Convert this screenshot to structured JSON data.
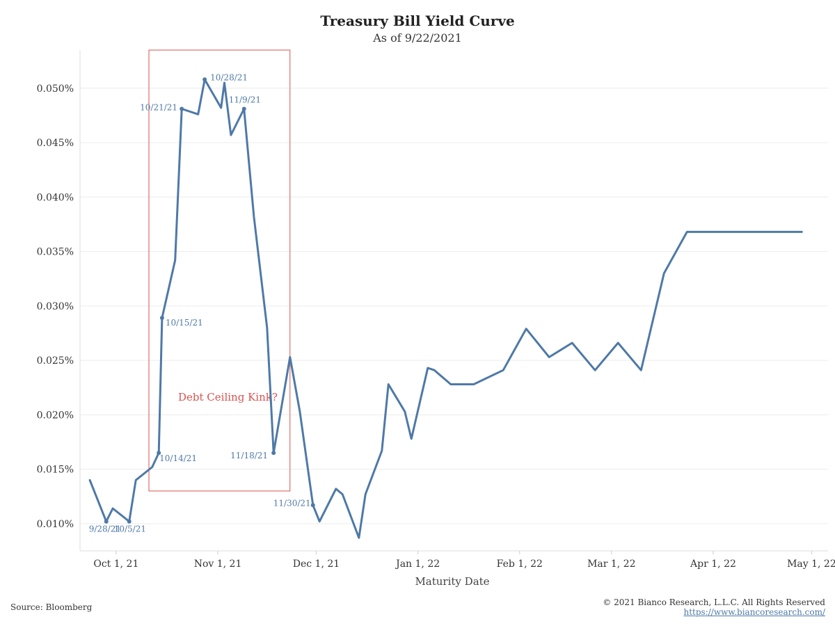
{
  "chart_data": {
    "type": "line",
    "title": "Treasury Bill Yield Curve",
    "subtitle": "As of 9/22/2021",
    "xlabel": "Maturity Date",
    "ylabel": "",
    "x_tick_labels": [
      "Oct 1, 21",
      "Nov 1, 21",
      "Dec 1, 21",
      "Jan 1, 22",
      "Feb 1, 22",
      "Mar 1, 22",
      "Apr 1, 22",
      "May 1, 22"
    ],
    "y_tick_labels": [
      "0.010%",
      "0.015%",
      "0.020%",
      "0.025%",
      "0.030%",
      "0.035%",
      "0.040%",
      "0.045%",
      "0.050%"
    ],
    "y_ticks": [
      0.01,
      0.015,
      0.02,
      0.025,
      0.03,
      0.035,
      0.04,
      0.045,
      0.05
    ],
    "ylim": [
      0.0075,
      0.0535
    ],
    "xlim": [
      "2021-09-20",
      "2022-05-06"
    ],
    "grid": true,
    "series": [
      {
        "color": "#4e79a7",
        "x": [
          "2021-09-23",
          "2021-09-28",
          "2021-09-30",
          "2021-10-05",
          "2021-10-07",
          "2021-10-12",
          "2021-10-14",
          "2021-10-15",
          "2021-10-19",
          "2021-10-21",
          "2021-10-26",
          "2021-10-28",
          "2021-11-02",
          "2021-11-03",
          "2021-11-05",
          "2021-11-09",
          "2021-11-12",
          "2021-11-16",
          "2021-11-18",
          "2021-11-23",
          "2021-11-26",
          "2021-11-30",
          "2021-12-02",
          "2021-12-07",
          "2021-12-09",
          "2021-12-14",
          "2021-12-16",
          "2021-12-21",
          "2021-12-23",
          "2021-12-28",
          "2021-12-30",
          "2022-01-04",
          "2022-01-06",
          "2022-01-11",
          "2022-01-18",
          "2022-01-27",
          "2022-02-03",
          "2022-02-10",
          "2022-02-17",
          "2022-02-24",
          "2022-03-03",
          "2022-03-10",
          "2022-03-17",
          "2022-03-24",
          "2022-03-31",
          "2022-04-28"
        ],
        "values": [
          0.014,
          0.0102,
          0.0114,
          0.0102,
          0.014,
          0.0152,
          0.0165,
          0.0289,
          0.0342,
          0.0481,
          0.0476,
          0.0508,
          0.0482,
          0.0505,
          0.0457,
          0.0481,
          0.0382,
          0.028,
          0.0165,
          0.0253,
          0.0203,
          0.0117,
          0.0102,
          0.0132,
          0.0127,
          0.0087,
          0.0127,
          0.0167,
          0.0228,
          0.0203,
          0.0178,
          0.0243,
          0.0241,
          0.0228,
          0.0228,
          0.0241,
          0.0279,
          0.0253,
          0.0266,
          0.0241,
          0.0266,
          0.0241,
          0.033,
          0.0368,
          0.0368,
          0.0368
        ]
      }
    ],
    "point_labels": [
      {
        "x": "2021-09-28",
        "y": 0.0102,
        "text": "9/28/21"
      },
      {
        "x": "2021-10-05",
        "y": 0.0102,
        "text": "10/5/21"
      },
      {
        "x": "2021-10-14",
        "y": 0.0165,
        "text": "10/14/21"
      },
      {
        "x": "2021-10-15",
        "y": 0.0289,
        "text": "10/15/21"
      },
      {
        "x": "2021-10-21",
        "y": 0.0481,
        "text": "10/21/21"
      },
      {
        "x": "2021-10-28",
        "y": 0.0508,
        "text": "10/28/21"
      },
      {
        "x": "2021-11-09",
        "y": 0.0481,
        "text": "11/9/21"
      },
      {
        "x": "2021-11-18",
        "y": 0.0165,
        "text": "11/18/21"
      },
      {
        "x": "2021-11-30",
        "y": 0.0117,
        "text": "11/30/21"
      }
    ],
    "annotation": {
      "text": "Debt Ceiling Kink?",
      "color": "#d9534f",
      "box_x": [
        "2021-10-11",
        "2021-11-23"
      ],
      "box_y": [
        0.013,
        0.0535
      ]
    }
  },
  "footer": {
    "source": "Source: Bloomberg",
    "copyright": "© 2021 Bianco Research, L.L.C. All Rights Reserved",
    "url": "https://www.biancoresearch.com/"
  }
}
